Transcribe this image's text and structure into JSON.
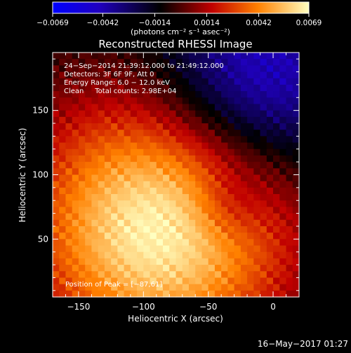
{
  "chart_data": {
    "type": "heatmap",
    "title": "Reconstructed RHESSI Image",
    "xlabel": "Heliocentric X (arcsec)",
    "ylabel": "Heliocentric Y (arcsec)",
    "xlim": [
      -170,
      20
    ],
    "ylim": [
      5,
      195
    ],
    "x_ticks": [
      -150,
      -100,
      -50,
      0
    ],
    "x_tick_labels": [
      "−150",
      "−100",
      "−50",
      "0"
    ],
    "y_ticks": [
      50,
      100,
      150
    ],
    "y_tick_labels": [
      "50",
      "100",
      "150"
    ],
    "colorbar": {
      "range": [
        -0.0069,
        0.0069
      ],
      "ticks": [
        -0.0069,
        -0.0042,
        -0.0014,
        0.0014,
        0.0042,
        0.0069
      ],
      "tick_labels": [
        "−0.0069",
        "−0.0042",
        "−0.0014",
        "0.0014",
        "0.0042",
        "0.0069"
      ],
      "unit_text": "(photons cm⁻² s⁻¹ asec⁻²)"
    },
    "peak": {
      "x": -87,
      "y": 61
    },
    "annotations": [
      "24−Sep−2014 21:39:12.000 to 21:49:12.000",
      "Detectors: 3F 6F 9F, Att 0",
      "Energy Range: 6.0 − 12.0 keV",
      "Clean     Total counts: 2.98E+04"
    ],
    "peak_label": "Position of Peak = [−87,61]",
    "colors": {
      "low": "#0000ff",
      "mid_low": "#000000",
      "mid": "#b80000",
      "mid_high": "#ff8000",
      "high": "#ffff80"
    }
  },
  "footer": {
    "timestamp": "16−May−2017 01:27"
  }
}
